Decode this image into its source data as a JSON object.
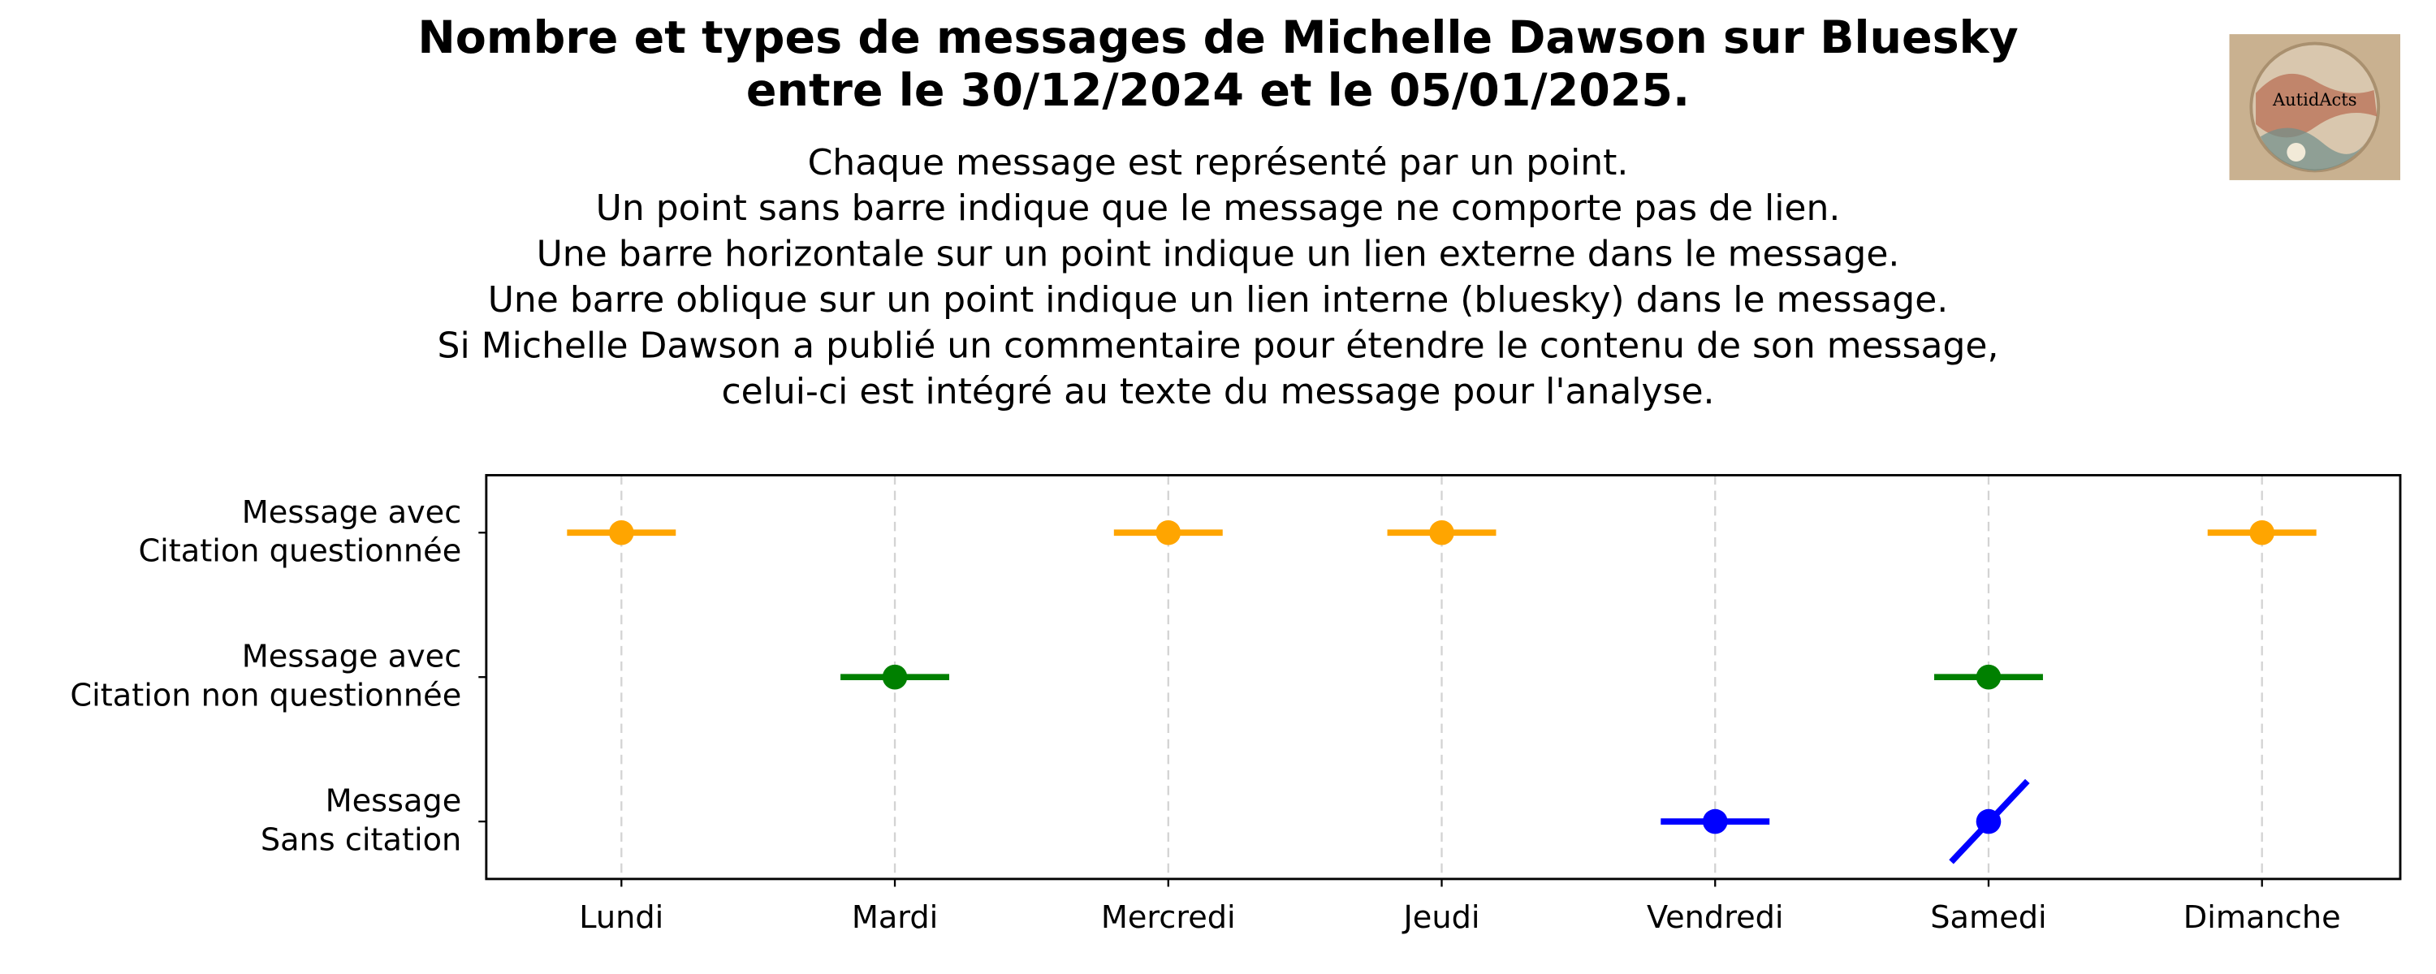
{
  "chart_data": {
    "type": "scatter",
    "title": [
      "Nombre et types de messages de Michelle Dawson sur Bluesky",
      "entre le 30/12/2024 et le 05/01/2025."
    ],
    "subtitle": [
      "Chaque message est représenté par un point.",
      "Un point sans barre indique que le message ne comporte pas de lien.",
      "Une barre horizontale sur un point indique un lien externe dans le message.",
      "Une barre oblique sur un point indique un lien interne (bluesky) dans le message.",
      "Si Michelle Dawson a publié un commentaire pour étendre le contenu de son message,",
      "celui-ci est intégré au texte du message pour l'analyse."
    ],
    "categories": [
      "Lundi",
      "Mardi",
      "Mercredi",
      "Jeudi",
      "Vendredi",
      "Samedi",
      "Dimanche"
    ],
    "y_categories": [
      [
        "Message",
        "Sans citation"
      ],
      [
        "Message avec",
        "Citation non questionnée"
      ],
      [
        "Message avec",
        "Citation questionnée"
      ]
    ],
    "grid": true,
    "series": [
      {
        "color": "#ffa500",
        "row": 2,
        "points": [
          {
            "x": "Lundi",
            "link": "horizontal"
          },
          {
            "x": "Mercredi",
            "link": "horizontal"
          },
          {
            "x": "Jeudi",
            "link": "horizontal"
          },
          {
            "x": "Dimanche",
            "link": "horizontal"
          }
        ]
      },
      {
        "color": "#008000",
        "row": 1,
        "points": [
          {
            "x": "Mardi",
            "link": "horizontal"
          },
          {
            "x": "Samedi",
            "link": "horizontal"
          }
        ]
      },
      {
        "color": "#0000ff",
        "row": 0,
        "points": [
          {
            "x": "Vendredi",
            "link": "horizontal"
          },
          {
            "x": "Samedi",
            "link": "oblique"
          }
        ]
      }
    ]
  }
}
